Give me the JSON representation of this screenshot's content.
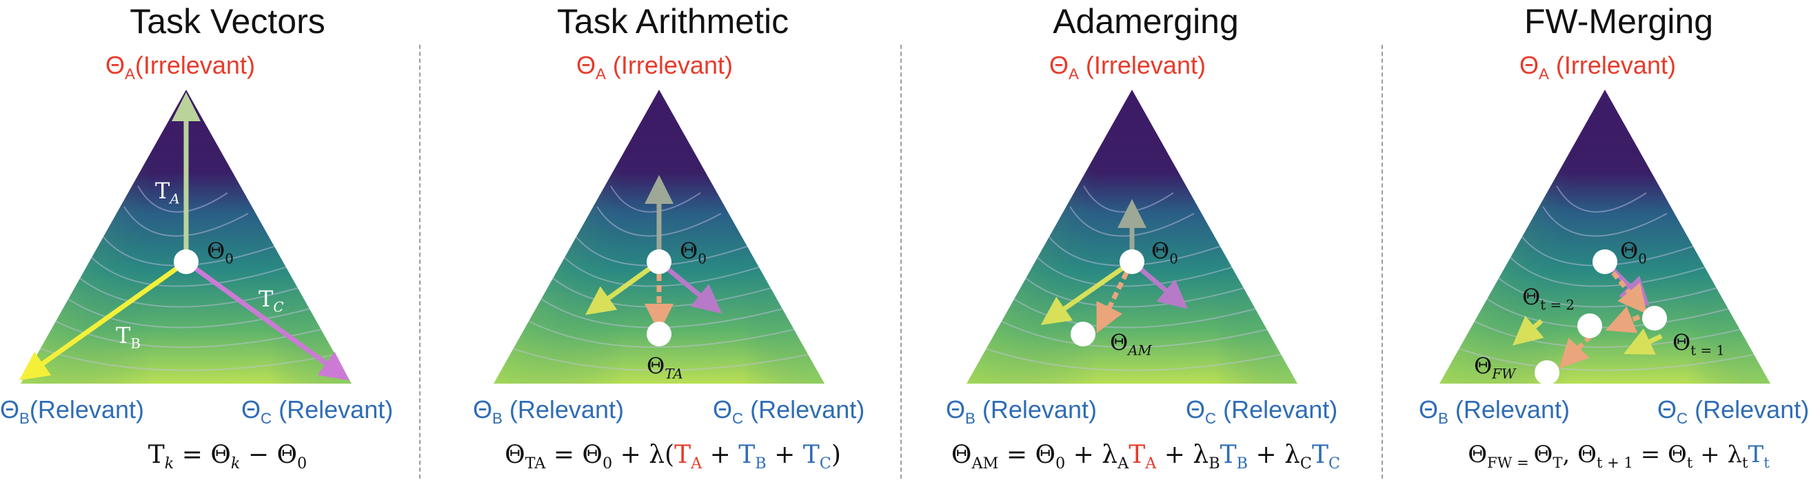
{
  "colors": {
    "irrelevant": "#e83a2a",
    "relevant": "#2f6db5",
    "landscape_dark": "#3e1b67",
    "landscape_mid": "#2f8a7a",
    "landscape_light": "#bfe34a",
    "vector_A": "#b9d39a",
    "vector_B": "#f4f03a",
    "vector_C": "#cc7ad6",
    "step_arrow": "#eba57c",
    "point_fill": "#ffffff"
  },
  "panels": [
    {
      "title": "Task Vectors",
      "vertex_top": {
        "sym": "Θ",
        "sub": "A",
        "text": "(Irrelevant)"
      },
      "vertex_left": {
        "sym": "Θ",
        "sub": "B",
        "text": "(Relevant)"
      },
      "vertex_right": {
        "sym": "Θ",
        "sub": "C",
        "text": " (Relevant)"
      },
      "labels": {
        "theta0": "Θ",
        "theta0_sub": "0",
        "TA": "T",
        "TA_sub": "A",
        "TB": "T",
        "TB_sub": "B",
        "TC": "T",
        "TC_sub": "C"
      },
      "formula": {
        "lhs": "T",
        "lhs_sub": "k",
        "eq": " =  Θ",
        "eq_sub": "k",
        "tail": " − Θ",
        "tail_sub": "0"
      }
    },
    {
      "title": "Task Arithmetic",
      "vertex_top": {
        "sym": "Θ",
        "sub": "A",
        "text": " (Irrelevant)"
      },
      "vertex_left": {
        "sym": "Θ",
        "sub": "B",
        "text": " (Relevant)"
      },
      "vertex_right": {
        "sym": "Θ",
        "sub": "C",
        "text": " (Relevant)"
      },
      "labels": {
        "theta0": "Θ",
        "theta0_sub": "0",
        "thetaTA": "Θ",
        "thetaTA_sub": "TA"
      },
      "formula": {
        "lhs": "Θ",
        "lhs_sub": "TA",
        "p1": " =  Θ",
        "p1_sub": "0",
        "p2": " + λ(",
        "tA": "T",
        "tA_sub": "A",
        "plus1": " + ",
        "tB": "T",
        "tB_sub": "B",
        "plus2": " + ",
        "tC": "T",
        "tC_sub": "C",
        "close": ")"
      }
    },
    {
      "title": "Adamerging",
      "vertex_top": {
        "sym": "Θ",
        "sub": "A",
        "text": " (Irrelevant)"
      },
      "vertex_left": {
        "sym": "Θ",
        "sub": "B",
        "text": " (Relevant)"
      },
      "vertex_right": {
        "sym": "Θ",
        "sub": "C",
        "text": " (Relevant)"
      },
      "labels": {
        "theta0": "Θ",
        "theta0_sub": "0",
        "thetaAM": "Θ",
        "thetaAM_sub": "AM"
      },
      "formula": {
        "lhs": "Θ",
        "lhs_sub": "AM",
        "p1": " =  Θ",
        "p1_sub": "0",
        "l1": " + λ",
        "l1_sub": "A",
        "tA": "T",
        "tA_sub": "A",
        "l2": " + λ",
        "l2_sub": "B",
        "tB": "T",
        "tB_sub": "B",
        "l3": " + λ",
        "l3_sub": "C",
        "tC": "T",
        "tC_sub": "C"
      }
    },
    {
      "title": "FW-Merging",
      "vertex_top": {
        "sym": "Θ",
        "sub": "A",
        "text": " (Irrelevant)"
      },
      "vertex_left": {
        "sym": "Θ",
        "sub": "B",
        "text": " (Relevant)"
      },
      "vertex_right": {
        "sym": "Θ",
        "sub": "C",
        "text": " (Relevant)"
      },
      "labels": {
        "theta0": "Θ",
        "theta0_sub": "0",
        "t1": "Θ",
        "t1_sub": "t = 1",
        "t2": "Θ",
        "t2_sub": "t = 2",
        "tfw": "Θ",
        "tfw_sub": "FW"
      },
      "formula": {
        "a": "Θ",
        "a_sub": "FW = ",
        "b": "Θ",
        "b_sub": "T",
        "c": ", Θ",
        "c_sub": "t + 1",
        "d": " = Θ",
        "d_sub": "t",
        "e": " + λ",
        "e_sub": "t",
        "f": "T",
        "f_sub": "t"
      }
    }
  ]
}
